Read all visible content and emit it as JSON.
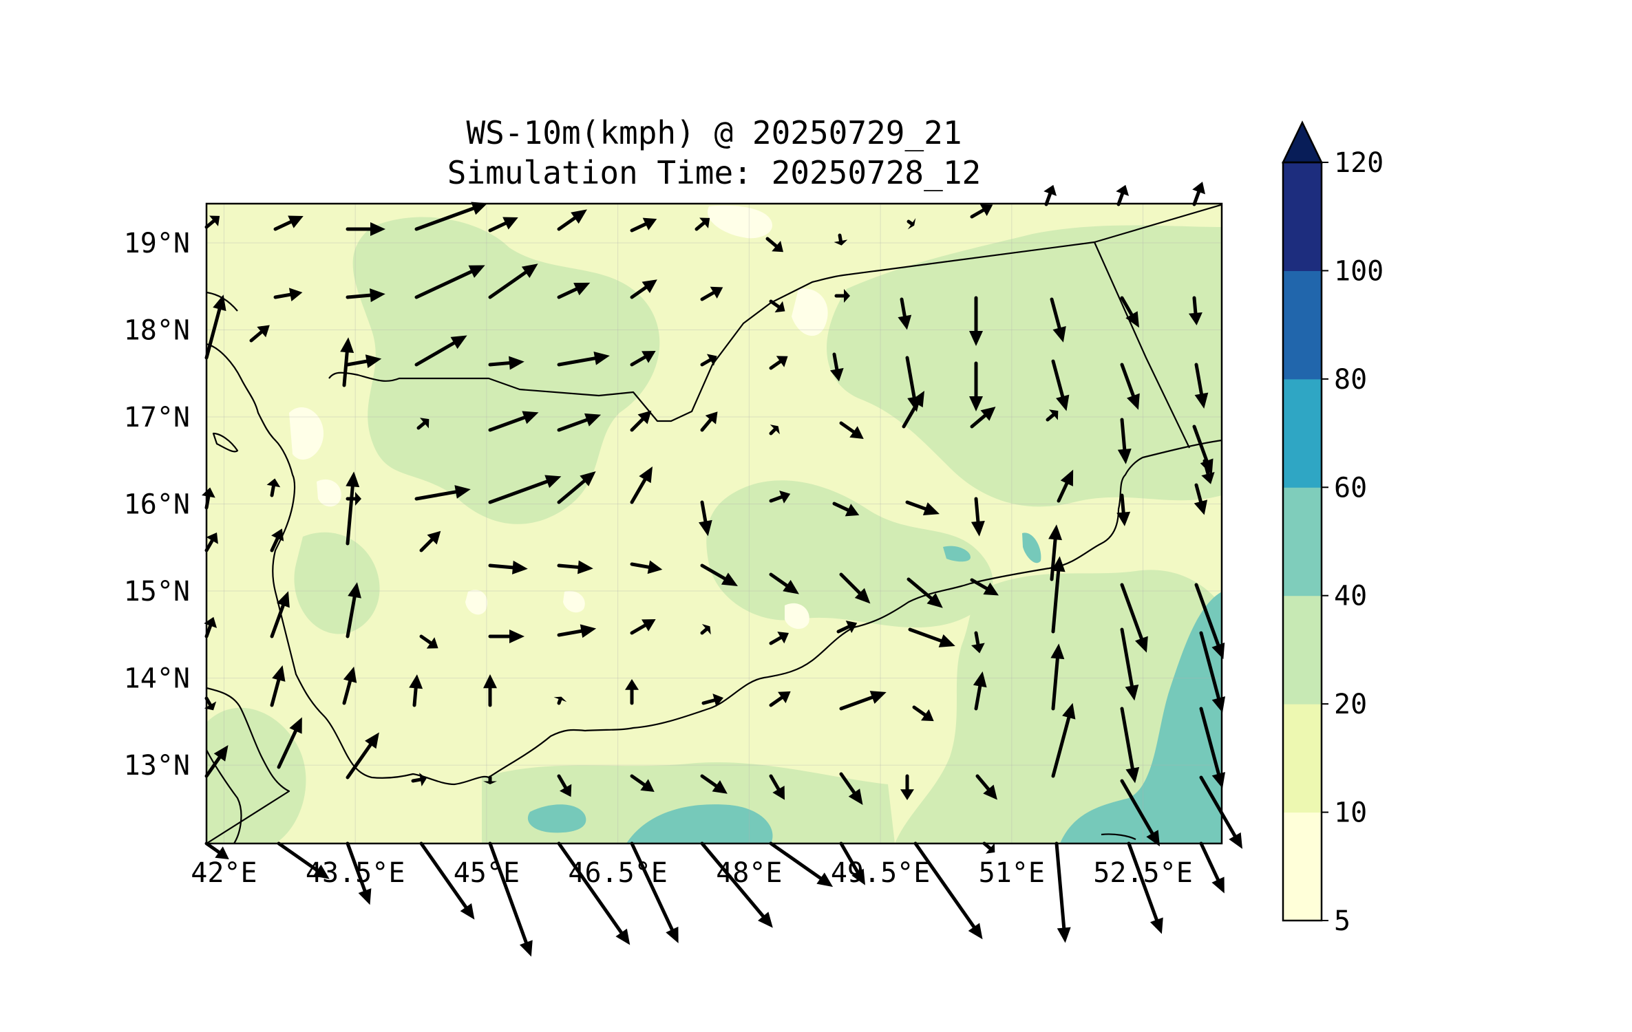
{
  "title": {
    "line1": "WS-10m(kmph) @ 20250729_21",
    "line2": "Simulation Time: 20250728_12"
  },
  "map": {
    "lon_range": [
      41.8,
      53.4
    ],
    "lat_range": [
      12.1,
      19.45
    ],
    "lon_ticks": [
      42,
      43.5,
      45,
      46.5,
      48,
      49.5,
      51,
      52.5
    ],
    "lon_tick_labels": [
      "42°E",
      "43.5°E",
      "45°E",
      "46.5°E",
      "48°E",
      "49.5°E",
      "51°E",
      "52.5°E"
    ],
    "lat_ticks": [
      13,
      14,
      15,
      16,
      17,
      18,
      19
    ],
    "lat_tick_labels": [
      "13°N",
      "14°N",
      "15°N",
      "16°N",
      "17°N",
      "18°N",
      "19°N"
    ],
    "gridlines": true
  },
  "colorbar": {
    "levels": [
      5,
      10,
      20,
      40,
      60,
      80,
      100,
      120
    ],
    "tick_labels": [
      "5",
      "10",
      "20",
      "40",
      "60",
      "80",
      "100",
      "120"
    ],
    "colors": [
      "#ffffd9",
      "#edf8b1",
      "#c7e9b4",
      "#7fcdbb",
      "#2fa6c4",
      "#2166ac",
      "#1d2d7e"
    ],
    "extend_color": "#081d58",
    "extend": "max"
  },
  "colors": {
    "land_low": "#f2f9c4",
    "land_mid": "#d2ecb4",
    "sea_high": "#76c9ba",
    "white_patch": "#ffffe8",
    "border": "#000000",
    "arrow": "#000000"
  }
}
